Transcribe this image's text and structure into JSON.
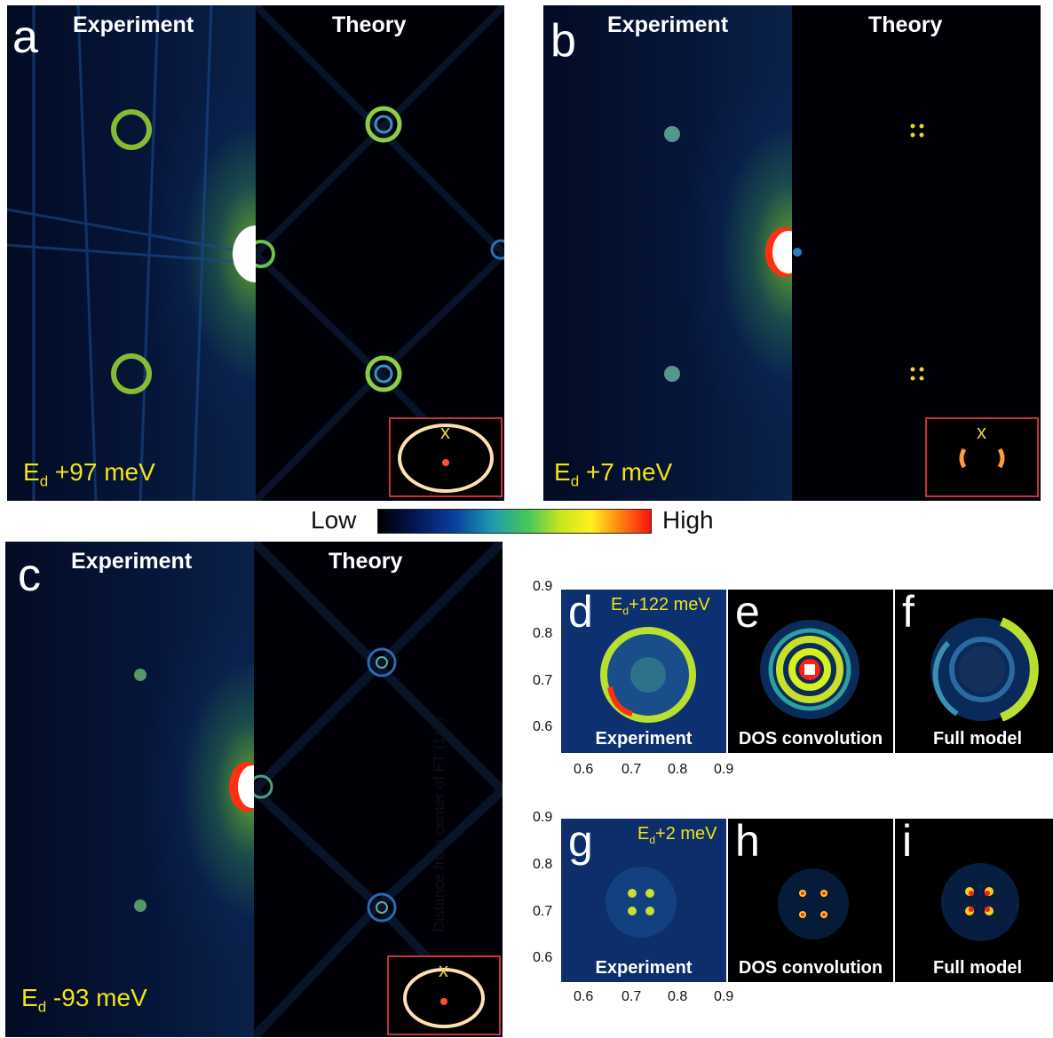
{
  "panels": {
    "a": {
      "letter": "a",
      "left_title": "Experiment",
      "right_title": "Theory",
      "energy_main": "E",
      "energy_sub": "d",
      "energy_val": " +97 meV",
      "inset_mark": "x"
    },
    "b": {
      "letter": "b",
      "left_title": "Experiment",
      "right_title": "Theory",
      "energy_main": "E",
      "energy_sub": "d",
      "energy_val": " +7 meV",
      "inset_mark": "x"
    },
    "c": {
      "letter": "c",
      "left_title": "Experiment",
      "right_title": "Theory",
      "energy_main": "E",
      "energy_sub": "d",
      "energy_val": " -93 meV",
      "inset_mark": "x"
    }
  },
  "colorbar": {
    "low": "Low",
    "high": "High"
  },
  "small_panels": {
    "d": {
      "letter": "d",
      "label": "Experiment",
      "energy_main": "E",
      "energy_sub": "d",
      "energy_val": "+122 meV"
    },
    "e": {
      "letter": "e",
      "label": "DOS convolution"
    },
    "f": {
      "letter": "f",
      "label": "Full model"
    },
    "g": {
      "letter": "g",
      "label": "Experiment",
      "energy_main": "E",
      "energy_sub": "d",
      "energy_val": "+2 meV"
    },
    "h": {
      "letter": "h",
      "label": "DOS convolution"
    },
    "i": {
      "letter": "i",
      "label": "Full model"
    }
  },
  "axes": {
    "y_label": "Distance from center of FT (1/Å)",
    "top_y_ticks": [
      "0.9",
      "0.8",
      "0.7",
      "0.6"
    ],
    "bottom_y_ticks": [
      "0.9",
      "0.8",
      "0.7",
      "0.6"
    ],
    "x_ticks": [
      "0.6",
      "0.7",
      "0.8",
      "0.9"
    ]
  }
}
